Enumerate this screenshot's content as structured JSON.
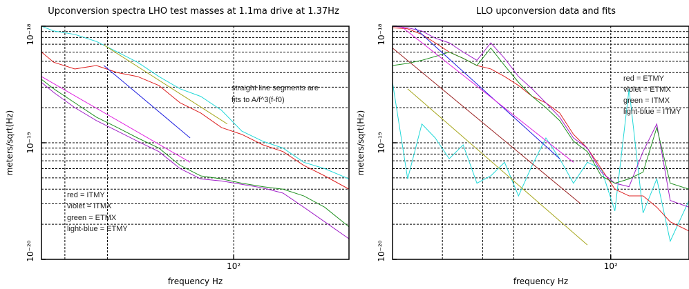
{
  "chart_data": [
    {
      "type": "line",
      "title": "Upconversion spectra LHO test masses at 1.1ma drive at 1.37Hz",
      "xlabel": "frequency Hz",
      "ylabel": "meters/sqrt(Hz)",
      "xscale": "log",
      "yscale": "log",
      "grid": true,
      "xlim": [
        16,
        300
      ],
      "ylim": [
        1e-20,
        1e-18
      ],
      "xticks": [
        {
          "value": 100,
          "label": "10²"
        }
      ],
      "yticks": [
        {
          "value": 1e-20,
          "label": "10⁻²⁰"
        },
        {
          "value": 1e-19,
          "label": "10⁻¹⁹"
        },
        {
          "value": 1e-18,
          "label": "10⁻¹⁸"
        }
      ],
      "xgrid_minor": [
        20,
        30
      ],
      "ygrid_minor": [
        2e-20,
        3e-20,
        4e-20,
        5e-20,
        6e-20,
        7e-20,
        8e-20,
        9e-20,
        2e-19,
        3e-19,
        4e-19,
        5e-19,
        6e-19,
        7e-19,
        8e-19,
        9e-19
      ],
      "annotations": [
        "straight line segments are",
        "fits to A/f^3(f-f0)",
        "red = ITMY",
        "violet = ITMX",
        "green = ETMX",
        "light-blue = ETMY"
      ],
      "series": [
        {
          "color": "#22d8d8",
          "x": [
            16,
            18,
            22,
            27,
            33,
            40,
            49,
            60,
            73,
            89,
            108,
            132,
            160,
            195,
            238,
            300
          ],
          "values": [
            1e-18,
            9.1e-19,
            8.5e-19,
            7.4e-19,
            6e-19,
            4.9e-19,
            3.7e-19,
            2.9e-19,
            2.5e-19,
            1.9e-19,
            1.26e-19,
            1.03e-19,
            9e-20,
            6.8e-20,
            6e-20,
            4.9e-20
          ]
        },
        {
          "color": "#dd2020",
          "x": [
            16,
            18,
            22,
            27,
            33,
            40,
            49,
            60,
            73,
            89,
            108,
            132,
            160,
            195,
            238,
            300
          ],
          "values": [
            6e-19,
            4.9e-19,
            4.3e-19,
            4.6e-19,
            4e-19,
            3.7e-19,
            3.1e-19,
            2.2e-19,
            1.8e-19,
            1.35e-19,
            1.18e-19,
            9.6e-20,
            8.4e-20,
            6.4e-20,
            5.2e-20,
            4e-20
          ]
        },
        {
          "color": "#a020c8",
          "x": [
            16,
            18,
            22,
            27,
            33,
            40,
            49,
            60,
            73,
            89,
            108,
            132,
            160,
            195,
            238,
            300
          ],
          "values": [
            3.3e-19,
            2.7e-19,
            2e-19,
            1.55e-19,
            1.26e-19,
            1.03e-19,
            8.4e-20,
            6e-20,
            4.9e-20,
            4.7e-20,
            4.4e-20,
            4.1e-20,
            3.7e-20,
            2.8e-20,
            2.1e-20,
            1.5e-20
          ]
        },
        {
          "color": "#209020",
          "x": [
            16,
            18,
            22,
            27,
            33,
            40,
            49,
            60,
            73,
            89,
            108,
            132,
            160,
            195,
            238,
            300
          ],
          "values": [
            3.5e-19,
            2.9e-19,
            2.2e-19,
            1.66e-19,
            1.35e-19,
            1.1e-19,
            9e-20,
            6.4e-20,
            5.2e-20,
            4.9e-20,
            4.5e-20,
            4.2e-20,
            4e-20,
            3.5e-20,
            2.8e-20,
            1.9e-20
          ]
        },
        {
          "color": "#a8a820",
          "x": [
            29,
            94
          ],
          "values": [
            6.9e-19,
            1.45e-19
          ]
        },
        {
          "color": "#2020e0",
          "x": [
            29,
            66
          ],
          "values": [
            4.6e-19,
            1.1e-19
          ]
        },
        {
          "color": "#e020e0",
          "x": [
            16,
            66
          ],
          "values": [
            3.7e-19,
            6.8e-20
          ]
        }
      ]
    },
    {
      "type": "line",
      "title": "LLO upconversion data and fits",
      "xlabel": "frequency Hz",
      "ylabel": "meters/sqrt(Hz)",
      "xscale": "log",
      "yscale": "log",
      "grid": true,
      "xlim": [
        21,
        175
      ],
      "ylim": [
        1e-20,
        1e-18
      ],
      "xticks": [
        {
          "value": 100,
          "label": "10²"
        }
      ],
      "yticks": [
        {
          "value": 1e-20,
          "label": "10⁻²⁰"
        },
        {
          "value": 1e-19,
          "label": "10⁻¹⁹"
        },
        {
          "value": 1e-18,
          "label": "10⁻¹⁸"
        }
      ],
      "xgrid_minor": [
        30,
        40,
        50
      ],
      "ygrid_minor": [
        2e-20,
        3e-20,
        4e-20,
        5e-20,
        6e-20,
        7e-20,
        8e-20,
        9e-20,
        2e-19,
        3e-19,
        4e-19,
        5e-19,
        6e-19,
        7e-19,
        8e-19,
        9e-19
      ],
      "annotations": [
        "red = ETMY",
        "violet = ETMX",
        "green = ITMX",
        "light-blue = ITMY"
      ],
      "series": [
        {
          "color": "#22d8d8",
          "x": [
            21,
            23.4,
            25.9,
            28.5,
            31.5,
            34.8,
            38.4,
            42.4,
            46.8,
            51.7,
            57,
            62.9,
            69.4,
            76.6,
            84.6,
            93.4,
            103,
            114,
            126,
            139,
            153,
            175
          ],
          "values": [
            3.3e-19,
            4.9e-20,
            1.45e-19,
            1.1e-19,
            7.3e-20,
            9.6e-20,
            4.5e-20,
            5.2e-20,
            6.8e-20,
            3.5e-20,
            6.4e-20,
            1.1e-19,
            7.3e-20,
            4.5e-20,
            6.8e-20,
            6e-20,
            2.6e-20,
            2.9e-19,
            2.5e-20,
            4.9e-20,
            1.43e-20,
            3.2e-20
          ]
        },
        {
          "color": "#dd2020",
          "x": [
            21,
            23.4,
            25.9,
            28.5,
            31.5,
            34.8,
            38.4,
            42.4,
            46.8,
            51.7,
            57,
            62.9,
            69.4,
            76.6,
            84.6,
            93.4,
            103,
            114,
            126,
            139,
            153,
            175
          ],
          "values": [
            9.7e-19,
            9.5e-19,
            8.5e-19,
            7.2e-19,
            6e-19,
            5.3e-19,
            4.6e-19,
            4.3e-19,
            3.7e-19,
            3.1e-19,
            2.5e-19,
            2.2e-19,
            1.8e-19,
            1.18e-19,
            9e-20,
            6e-20,
            4e-20,
            3.5e-20,
            3.5e-20,
            2.8e-20,
            2.1e-20,
            1.75e-20
          ]
        },
        {
          "color": "#a020c8",
          "x": [
            21,
            23.4,
            25.9,
            28.5,
            31.5,
            34.8,
            38.4,
            42.4,
            46.8,
            51.7,
            57,
            62.9,
            69.4,
            76.6,
            84.6,
            93.4,
            103,
            114,
            126,
            139,
            153,
            175
          ],
          "values": [
            1e-18,
            9.7e-19,
            9.1e-19,
            7.9e-19,
            7.2e-19,
            6e-19,
            5.1e-19,
            7.2e-19,
            5.3e-19,
            3.7e-19,
            2.9e-19,
            2.2e-19,
            1.66e-19,
            1.1e-19,
            9e-20,
            5.6e-20,
            4.5e-20,
            4.2e-20,
            8.4e-20,
            1.45e-19,
            3.2e-20,
            2.8e-20
          ]
        },
        {
          "color": "#209020",
          "x": [
            21,
            23.4,
            25.9,
            28.5,
            31.5,
            34.8,
            38.4,
            42.4,
            46.8,
            51.7,
            57,
            62.9,
            69.4,
            76.6,
            84.6,
            93.4,
            103,
            114,
            126,
            139,
            153,
            175
          ],
          "values": [
            4.6e-19,
            4.8e-19,
            5.1e-19,
            5.5e-19,
            6e-19,
            5.3e-19,
            4.6e-19,
            6.5e-19,
            4.6e-19,
            3.3e-19,
            2.5e-19,
            2e-19,
            1.55e-19,
            1.03e-19,
            8.4e-20,
            5.2e-20,
            4.5e-20,
            4.9e-20,
            5.6e-20,
            1.35e-19,
            4.5e-20,
            4e-20
          ]
        },
        {
          "color": "#a8a820",
          "x": [
            23.4,
            84.6
          ],
          "values": [
            2.9e-19,
            1.33e-20
          ]
        },
        {
          "color": "#992020",
          "x": [
            21,
            80.6
          ],
          "values": [
            6.5e-19,
            3e-20
          ]
        },
        {
          "color": "#2020e0",
          "x": [
            24.6,
            69.4
          ],
          "values": [
            9.7e-19,
            7.3e-20
          ]
        },
        {
          "color": "#e020e0",
          "x": [
            22.3,
            76.6
          ],
          "values": [
            1e-18,
            6.8e-20
          ]
        }
      ]
    }
  ]
}
